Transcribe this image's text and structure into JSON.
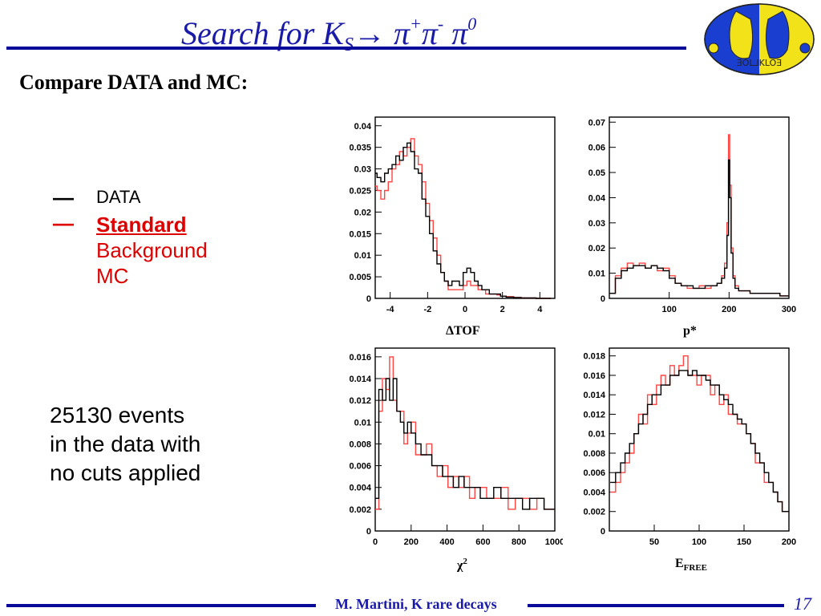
{
  "slide": {
    "title_prefix": "Search for K",
    "title_sub": "S",
    "title_arrow": "→",
    "title_pi1": " π",
    "title_plus": "+",
    "title_pi2": "π",
    "title_minus": "-",
    "title_pi3": " π",
    "title_zero": "0",
    "subtitle": "Compare DATA and MC:",
    "logo_text": "ƎOL⅃KLOƎ",
    "events_line1": "25130 events",
    "events_line2": "in the data with",
    "events_line3": "no cuts applied",
    "footer": "M. Martini, K rare decays",
    "page_number": "17"
  },
  "legend": {
    "data_dash": "—",
    "data_label": "DATA",
    "mc_dash": "—",
    "mc_label_1": "Standard",
    "mc_label_2": "Background",
    "mc_label_3": "MC"
  },
  "colors": {
    "data": "#000000",
    "mc": "#ff4444",
    "accent": "#0a0a9a"
  },
  "chart_data": [
    {
      "type": "line",
      "xlabel": "ΔTOF",
      "x_ticks": [
        -4,
        -2,
        0,
        2,
        4
      ],
      "y_ticks": [
        0,
        0.005,
        0.01,
        0.015,
        0.02,
        0.025,
        0.03,
        0.035,
        0.04
      ],
      "xlim": [
        -4.8,
        4.8
      ],
      "ylim": [
        0,
        0.042
      ],
      "x": [
        -4.8,
        -4.6,
        -4.4,
        -4.2,
        -4.0,
        -3.8,
        -3.6,
        -3.4,
        -3.2,
        -3.0,
        -2.8,
        -2.6,
        -2.4,
        -2.2,
        -2.0,
        -1.8,
        -1.6,
        -1.4,
        -1.2,
        -1.0,
        -0.8,
        -0.6,
        -0.4,
        -0.2,
        0.0,
        0.2,
        0.4,
        0.6,
        0.8,
        1.0,
        1.2,
        1.4,
        1.6,
        1.8,
        2.0,
        2.4,
        2.8,
        3.2,
        3.6,
        4.0,
        4.4
      ],
      "series": [
        {
          "name": "DATA",
          "values": [
            0.029,
            0.028,
            0.027,
            0.029,
            0.03,
            0.031,
            0.033,
            0.032,
            0.035,
            0.036,
            0.034,
            0.03,
            0.029,
            0.023,
            0.019,
            0.015,
            0.011,
            0.008,
            0.006,
            0.004,
            0.003,
            0.004,
            0.004,
            0.003,
            0.006,
            0.007,
            0.006,
            0.004,
            0.003,
            0.002,
            0.002,
            0.001,
            0.001,
            0.001,
            0.0005,
            0.0003,
            0.0002,
            0.0001,
            0.0001,
            0,
            0
          ]
        },
        {
          "name": "MC",
          "values": [
            0.026,
            0.025,
            0.023,
            0.025,
            0.027,
            0.03,
            0.031,
            0.034,
            0.033,
            0.035,
            0.037,
            0.033,
            0.031,
            0.027,
            0.022,
            0.018,
            0.014,
            0.01,
            0.006,
            0.004,
            0.002,
            0.002,
            0.002,
            0.002,
            0.003,
            0.004,
            0.003,
            0.003,
            0.002,
            0.002,
            0.001,
            0.001,
            0.001,
            0.0008,
            0.0005,
            0.0004,
            0.0002,
            0.0001,
            0.0001,
            0,
            0
          ]
        }
      ]
    },
    {
      "type": "line",
      "xlabel": "p*",
      "x_ticks": [
        100,
        200,
        300
      ],
      "y_ticks": [
        0,
        0.01,
        0.02,
        0.03,
        0.04,
        0.05,
        0.06,
        0.07
      ],
      "xlim": [
        0,
        300
      ],
      "ylim": [
        0,
        0.072
      ],
      "x": [
        5,
        15,
        25,
        35,
        45,
        55,
        65,
        75,
        85,
        95,
        105,
        115,
        125,
        135,
        145,
        155,
        165,
        175,
        185,
        190,
        195,
        198,
        200,
        202,
        205,
        208,
        212,
        220,
        230,
        240,
        250,
        260,
        270,
        280,
        290,
        298
      ],
      "series": [
        {
          "name": "DATA",
          "values": [
            0.002,
            0.008,
            0.011,
            0.012,
            0.013,
            0.013,
            0.012,
            0.013,
            0.012,
            0.011,
            0.008,
            0.006,
            0.005,
            0.005,
            0.004,
            0.004,
            0.005,
            0.005,
            0.006,
            0.008,
            0.012,
            0.025,
            0.055,
            0.04,
            0.018,
            0.008,
            0.004,
            0.003,
            0.003,
            0.002,
            0.002,
            0.002,
            0.002,
            0.002,
            0.001,
            0.001
          ]
        },
        {
          "name": "MC",
          "values": [
            0.002,
            0.009,
            0.012,
            0.014,
            0.013,
            0.014,
            0.012,
            0.013,
            0.011,
            0.012,
            0.009,
            0.006,
            0.005,
            0.004,
            0.004,
            0.005,
            0.004,
            0.005,
            0.006,
            0.009,
            0.014,
            0.03,
            0.065,
            0.045,
            0.02,
            0.009,
            0.005,
            0.003,
            0.003,
            0.002,
            0.002,
            0.002,
            0.002,
            0.002,
            0.001,
            0.001
          ]
        }
      ]
    },
    {
      "type": "line",
      "xlabel": "χ2",
      "x_ticks": [
        0,
        200,
        400,
        600,
        800,
        1000
      ],
      "y_ticks": [
        0,
        0.002,
        0.004,
        0.006,
        0.008,
        0.01,
        0.012,
        0.014,
        0.016
      ],
      "xlim": [
        0,
        1000
      ],
      "ylim": [
        0,
        0.0168
      ],
      "x": [
        10,
        30,
        50,
        70,
        90,
        110,
        130,
        150,
        170,
        190,
        210,
        240,
        270,
        300,
        330,
        360,
        390,
        420,
        450,
        480,
        510,
        540,
        570,
        600,
        640,
        680,
        720,
        760,
        800,
        840,
        880,
        920,
        960,
        995
      ],
      "series": [
        {
          "name": "DATA",
          "values": [
            0.003,
            0.013,
            0.012,
            0.014,
            0.012,
            0.014,
            0.011,
            0.01,
            0.009,
            0.01,
            0.009,
            0.008,
            0.007,
            0.007,
            0.006,
            0.006,
            0.005,
            0.005,
            0.004,
            0.005,
            0.004,
            0.004,
            0.004,
            0.003,
            0.003,
            0.004,
            0.003,
            0.003,
            0.003,
            0.002,
            0.003,
            0.003,
            0.002,
            0.002
          ]
        },
        {
          "name": "MC",
          "values": [
            0.002,
            0.011,
            0.014,
            0.013,
            0.016,
            0.012,
            0.011,
            0.011,
            0.008,
            0.009,
            0.01,
            0.007,
            0.007,
            0.008,
            0.006,
            0.005,
            0.006,
            0.004,
            0.005,
            0.004,
            0.005,
            0.003,
            0.004,
            0.004,
            0.003,
            0.003,
            0.004,
            0.002,
            0.003,
            0.003,
            0.002,
            0.003,
            0.002,
            0.002
          ]
        }
      ]
    },
    {
      "type": "line",
      "xlabel": "EFREE",
      "x_ticks": [
        50,
        100,
        150,
        200
      ],
      "y_ticks": [
        0,
        0.002,
        0.004,
        0.006,
        0.008,
        0.01,
        0.012,
        0.014,
        0.016,
        0.018
      ],
      "xlim": [
        0,
        200
      ],
      "ylim": [
        0,
        0.0188
      ],
      "x": [
        4,
        10,
        15,
        20,
        25,
        30,
        35,
        40,
        45,
        50,
        55,
        60,
        65,
        70,
        75,
        80,
        85,
        90,
        95,
        100,
        105,
        110,
        115,
        120,
        125,
        130,
        135,
        140,
        145,
        150,
        155,
        160,
        165,
        170,
        175,
        180,
        185,
        190,
        195,
        199
      ],
      "series": [
        {
          "name": "DATA",
          "values": [
            0.005,
            0.006,
            0.007,
            0.008,
            0.009,
            0.01,
            0.011,
            0.012,
            0.013,
            0.014,
            0.014,
            0.015,
            0.015,
            0.016,
            0.016,
            0.0165,
            0.0165,
            0.016,
            0.0165,
            0.016,
            0.016,
            0.0155,
            0.015,
            0.015,
            0.014,
            0.0135,
            0.013,
            0.012,
            0.0115,
            0.011,
            0.01,
            0.009,
            0.008,
            0.007,
            0.006,
            0.005,
            0.004,
            0.003,
            0.002,
            0.002
          ]
        },
        {
          "name": "MC",
          "values": [
            0.004,
            0.005,
            0.006,
            0.007,
            0.008,
            0.01,
            0.012,
            0.011,
            0.014,
            0.013,
            0.015,
            0.016,
            0.015,
            0.017,
            0.016,
            0.017,
            0.018,
            0.016,
            0.016,
            0.015,
            0.016,
            0.016,
            0.014,
            0.015,
            0.013,
            0.014,
            0.012,
            0.012,
            0.011,
            0.011,
            0.01,
            0.009,
            0.007,
            0.007,
            0.005,
            0.005,
            0.004,
            0.003,
            0.002,
            0.002
          ]
        }
      ]
    }
  ],
  "chart_labels": {
    "p1": "ΔTOF",
    "p2": "p*",
    "p3_base": "χ",
    "p3_sup": "2",
    "p4_base": "E",
    "p4_sub": "FREE"
  }
}
